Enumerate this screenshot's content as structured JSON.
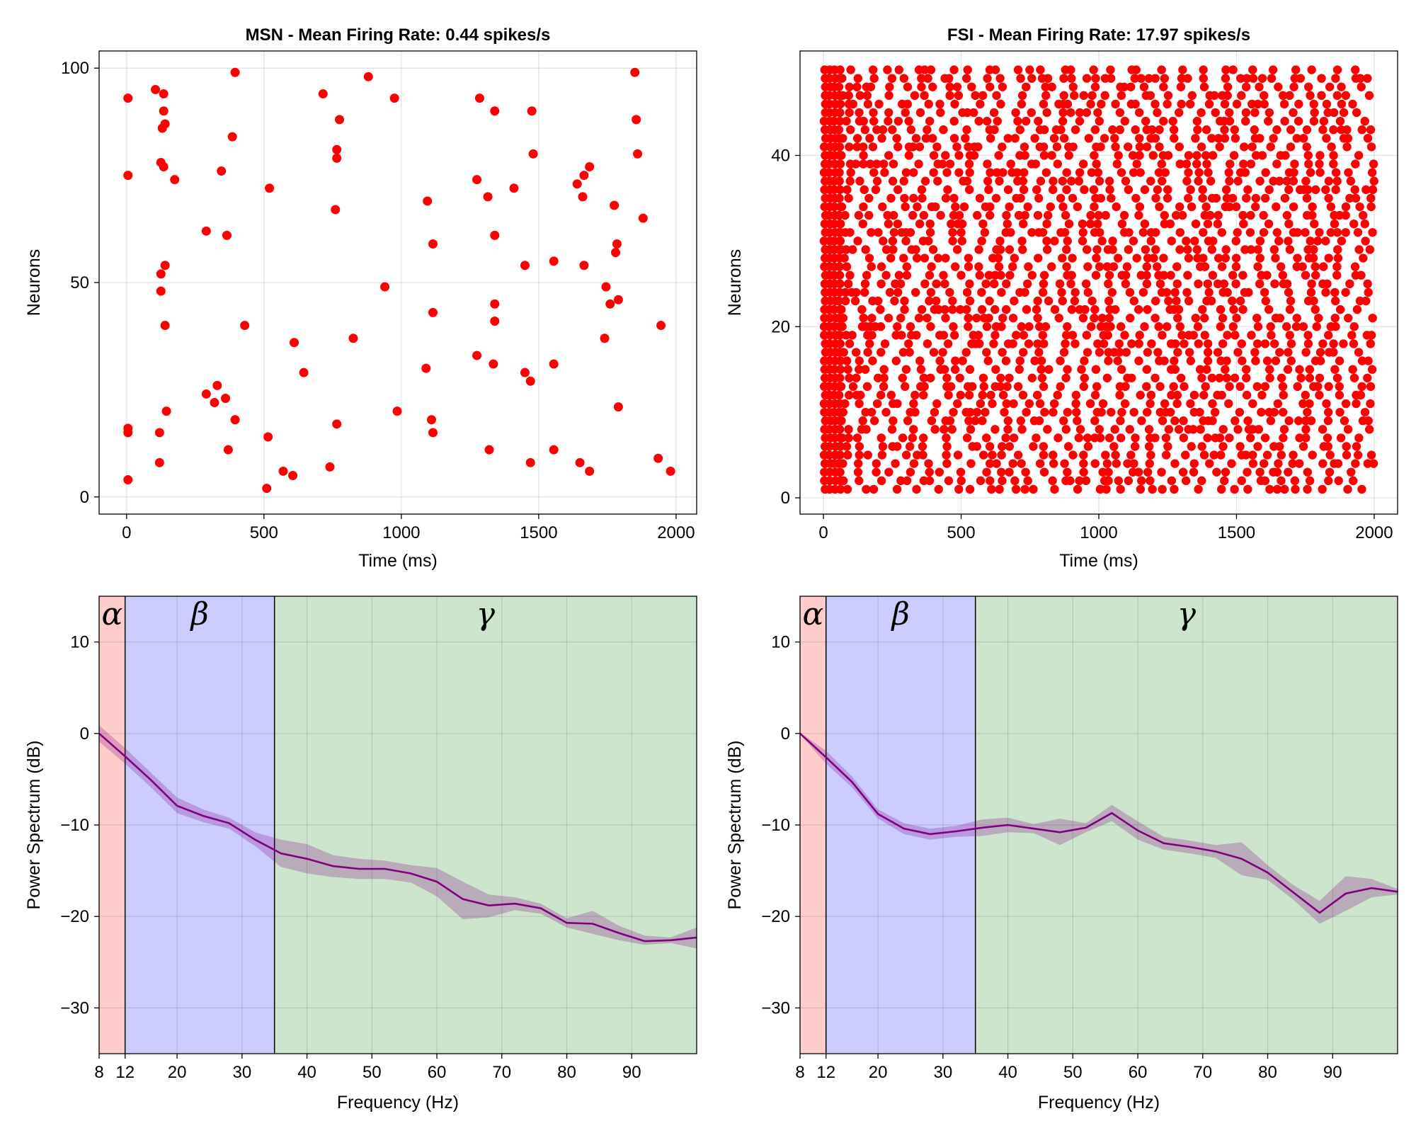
{
  "figure": {
    "width": 2000,
    "height": 1600
  },
  "chart_data": [
    {
      "id": "msn-raster",
      "type": "scatter",
      "title": "MSN - Mean Firing Rate: 0.44 spikes/s",
      "xlabel": "Time (ms)",
      "ylabel": "Neurons",
      "xlim": [
        -100,
        2075
      ],
      "ylim": [
        -4,
        104
      ],
      "xticks": [
        0,
        500,
        1000,
        1500,
        2000
      ],
      "xtick_labels": [
        "0",
        "500",
        "1000",
        "1500",
        "2000"
      ],
      "yticks": [
        0,
        50,
        100
      ],
      "ytick_labels": [
        "0",
        "50",
        "100"
      ],
      "marker_color": "#ff0000",
      "points": [
        [
          5,
          93
        ],
        [
          5,
          75
        ],
        [
          5,
          16
        ],
        [
          5,
          15
        ],
        [
          5,
          4
        ],
        [
          105,
          95
        ],
        [
          135,
          94
        ],
        [
          135,
          90
        ],
        [
          140,
          87
        ],
        [
          130,
          86
        ],
        [
          125,
          78
        ],
        [
          135,
          77
        ],
        [
          175,
          74
        ],
        [
          125,
          52
        ],
        [
          140,
          54
        ],
        [
          125,
          48
        ],
        [
          140,
          40
        ],
        [
          145,
          20
        ],
        [
          120,
          15
        ],
        [
          120,
          8
        ],
        [
          395,
          99
        ],
        [
          385,
          84
        ],
        [
          345,
          76
        ],
        [
          290,
          62
        ],
        [
          365,
          61
        ],
        [
          430,
          40
        ],
        [
          290,
          24
        ],
        [
          330,
          26
        ],
        [
          320,
          22
        ],
        [
          360,
          23
        ],
        [
          395,
          18
        ],
        [
          370,
          11
        ],
        [
          520,
          72
        ],
        [
          515,
          14
        ],
        [
          510,
          2
        ],
        [
          570,
          6
        ],
        [
          610,
          36
        ],
        [
          645,
          29
        ],
        [
          605,
          5
        ],
        [
          715,
          94
        ],
        [
          775,
          88
        ],
        [
          765,
          81
        ],
        [
          765,
          79
        ],
        [
          760,
          67
        ],
        [
          825,
          37
        ],
        [
          765,
          17
        ],
        [
          740,
          7
        ],
        [
          880,
          98
        ],
        [
          975,
          93
        ],
        [
          940,
          49
        ],
        [
          985,
          20
        ],
        [
          1095,
          69
        ],
        [
          1115,
          59
        ],
        [
          1115,
          43
        ],
        [
          1090,
          30
        ],
        [
          1110,
          18
        ],
        [
          1115,
          15
        ],
        [
          1285,
          93
        ],
        [
          1340,
          90
        ],
        [
          1275,
          74
        ],
        [
          1315,
          70
        ],
        [
          1410,
          72
        ],
        [
          1340,
          61
        ],
        [
          1340,
          45
        ],
        [
          1340,
          41
        ],
        [
          1275,
          33
        ],
        [
          1335,
          31
        ],
        [
          1320,
          11
        ],
        [
          1475,
          90
        ],
        [
          1480,
          80
        ],
        [
          1450,
          54
        ],
        [
          1450,
          29
        ],
        [
          1470,
          27
        ],
        [
          1470,
          8
        ],
        [
          1555,
          55
        ],
        [
          1555,
          31
        ],
        [
          1555,
          11
        ],
        [
          1640,
          73
        ],
        [
          1665,
          75
        ],
        [
          1685,
          77
        ],
        [
          1660,
          70
        ],
        [
          1665,
          54
        ],
        [
          1745,
          49
        ],
        [
          1760,
          45
        ],
        [
          1740,
          37
        ],
        [
          1650,
          8
        ],
        [
          1685,
          6
        ],
        [
          1850,
          99
        ],
        [
          1855,
          88
        ],
        [
          1860,
          80
        ],
        [
          1775,
          68
        ],
        [
          1785,
          59
        ],
        [
          1780,
          57
        ],
        [
          1790,
          46
        ],
        [
          1880,
          65
        ],
        [
          1790,
          21
        ],
        [
          1945,
          40
        ],
        [
          1935,
          9
        ],
        [
          1980,
          6
        ]
      ]
    },
    {
      "id": "fsi-raster",
      "type": "scatter",
      "title": "FSI - Mean Firing Rate: 17.97 spikes/s",
      "xlabel": "Time (ms)",
      "ylabel": "Neurons",
      "xlim": [
        -85,
        2085
      ],
      "ylim": [
        -1.9,
        52.2
      ],
      "xticks": [
        0,
        500,
        1000,
        1500,
        2000
      ],
      "xtick_labels": [
        "0",
        "500",
        "1000",
        "1500",
        "2000"
      ],
      "yticks": [
        0,
        20,
        40
      ],
      "ytick_labels": [
        "0",
        "20",
        "40"
      ],
      "marker_color": "#ff0000",
      "neurons": 50,
      "time_range": [
        0,
        2000
      ],
      "dense_onset_ms": 60,
      "approx_spikes_per_neuron": 36
    },
    {
      "id": "msn-psd",
      "type": "line",
      "xlabel": "Frequency (Hz)",
      "ylabel": "Power Spectrum (dB)",
      "xlim": [
        8,
        100
      ],
      "ylim": [
        -35,
        15
      ],
      "xticks": [
        8,
        12,
        20,
        30,
        40,
        50,
        60,
        70,
        80,
        90
      ],
      "xtick_labels": [
        "8",
        "12",
        "20",
        "30",
        "40",
        "50",
        "60",
        "70",
        "80",
        "90"
      ],
      "yticks": [
        10,
        0,
        -10,
        -20,
        -30
      ],
      "ytick_labels": [
        "10",
        "0",
        "−10",
        "−20",
        "−30"
      ],
      "bands": [
        {
          "name": "alpha",
          "label": "α",
          "from": 8,
          "to": 12,
          "color": "#ffcccc"
        },
        {
          "name": "beta",
          "label": "β",
          "from": 12,
          "to": 35,
          "color": "#ccccff"
        },
        {
          "name": "gamma",
          "label": "γ",
          "from": 35,
          "to": 100,
          "color": "#cce5cc"
        }
      ],
      "line_color": "#800080",
      "band_color": "#800080",
      "x": [
        8,
        12,
        16,
        20,
        24,
        28,
        32,
        36,
        40,
        44,
        48,
        52,
        56,
        60,
        64,
        68,
        72,
        76,
        80,
        84,
        88,
        92,
        96,
        100
      ],
      "mean": [
        0.0,
        -2.5,
        -5.1,
        -7.9,
        -9.0,
        -9.8,
        -11.6,
        -13.1,
        -13.7,
        -14.5,
        -14.8,
        -14.8,
        -15.3,
        -16.2,
        -18.1,
        -18.8,
        -18.6,
        -19.1,
        -20.7,
        -20.8,
        -21.8,
        -22.7,
        -22.6,
        -22.3
      ],
      "upper": [
        0.9,
        -1.6,
        -4.3,
        -7.0,
        -8.3,
        -9.2,
        -10.8,
        -11.6,
        -12.1,
        -13.3,
        -13.7,
        -13.9,
        -14.4,
        -14.7,
        -16.2,
        -17.6,
        -17.9,
        -18.6,
        -20.2,
        -19.4,
        -21.0,
        -22.1,
        -22.3,
        -21.2
      ],
      "lower": [
        -0.9,
        -3.3,
        -5.9,
        -8.7,
        -9.7,
        -10.4,
        -12.3,
        -14.6,
        -15.3,
        -15.7,
        -15.9,
        -15.9,
        -16.3,
        -17.8,
        -20.3,
        -20.1,
        -19.3,
        -19.7,
        -21.2,
        -21.9,
        -22.6,
        -23.1,
        -22.9,
        -23.5
      ]
    },
    {
      "id": "fsi-psd",
      "type": "line",
      "xlabel": "Frequency (Hz)",
      "ylabel": "Power Spectrum (dB)",
      "xlim": [
        8,
        100
      ],
      "ylim": [
        -35,
        15
      ],
      "xticks": [
        8,
        12,
        20,
        30,
        40,
        50,
        60,
        70,
        80,
        90
      ],
      "xtick_labels": [
        "8",
        "12",
        "20",
        "30",
        "40",
        "50",
        "60",
        "70",
        "80",
        "90"
      ],
      "yticks": [
        10,
        0,
        -10,
        -20,
        -30
      ],
      "ytick_labels": [
        "10",
        "0",
        "−10",
        "−20",
        "−30"
      ],
      "bands": [
        {
          "name": "alpha",
          "label": "α",
          "from": 8,
          "to": 12,
          "color": "#ffcccc"
        },
        {
          "name": "beta",
          "label": "β",
          "from": 12,
          "to": 35,
          "color": "#ccccff"
        },
        {
          "name": "gamma",
          "label": "γ",
          "from": 35,
          "to": 100,
          "color": "#cce5cc"
        }
      ],
      "line_color": "#800080",
      "band_color": "#800080",
      "x": [
        8,
        12,
        16,
        20,
        24,
        28,
        32,
        36,
        40,
        44,
        48,
        52,
        56,
        60,
        64,
        68,
        72,
        76,
        80,
        84,
        88,
        92,
        96,
        100
      ],
      "mean": [
        0.0,
        -2.6,
        -5.3,
        -8.8,
        -10.4,
        -11.0,
        -10.7,
        -10.3,
        -10.0,
        -10.4,
        -10.8,
        -10.3,
        -8.7,
        -10.6,
        -12.0,
        -12.4,
        -12.9,
        -13.7,
        -15.2,
        -17.4,
        -19.6,
        -17.5,
        -16.9,
        -17.3
      ],
      "upper": [
        0.1,
        -1.9,
        -4.7,
        -8.3,
        -9.8,
        -10.4,
        -10.1,
        -9.4,
        -9.2,
        -9.9,
        -9.3,
        -9.8,
        -7.8,
        -9.6,
        -11.3,
        -11.7,
        -12.2,
        -11.9,
        -14.4,
        -16.6,
        -18.3,
        -15.6,
        -15.9,
        -17.0
      ],
      "lower": [
        -0.1,
        -3.3,
        -5.9,
        -9.3,
        -11.0,
        -11.6,
        -11.3,
        -11.2,
        -10.8,
        -10.9,
        -12.2,
        -10.8,
        -9.6,
        -11.6,
        -12.7,
        -13.1,
        -13.6,
        -15.5,
        -16.0,
        -18.2,
        -20.8,
        -19.4,
        -17.9,
        -17.6
      ]
    }
  ]
}
